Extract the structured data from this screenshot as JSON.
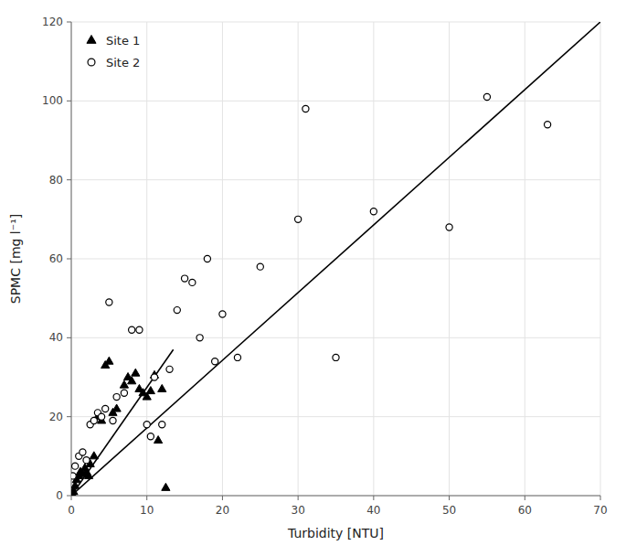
{
  "chart_data": {
    "type": "scatter",
    "xlabel": "Turbidity [NTU]",
    "ylabel": "SPMC [mg l⁻¹]",
    "xlim": [
      0,
      70
    ],
    "ylim": [
      0,
      120
    ],
    "xticks": [
      0,
      10,
      20,
      30,
      40,
      50,
      60,
      70
    ],
    "yticks": [
      0,
      20,
      40,
      60,
      80,
      100,
      120
    ],
    "grid": true,
    "legend": "upper left",
    "series": [
      {
        "name": "Site 1",
        "type": "scatter",
        "marker": "triangle",
        "color": "#000000",
        "x": [
          0.1,
          0.3,
          0.5,
          0.7,
          1.0,
          1.2,
          1.5,
          1.8,
          2.0,
          2.3,
          2.5,
          3.0,
          3.5,
          4.0,
          4.5,
          5.0,
          5.5,
          6.0,
          7.0,
          7.5,
          8.0,
          8.5,
          9.0,
          9.5,
          10.0,
          10.5,
          11.0,
          11.5,
          12.0,
          12.5
        ],
        "values": [
          0.5,
          1.0,
          2.5,
          4.0,
          5.0,
          6.0,
          5.5,
          7.0,
          6.0,
          5.0,
          8.0,
          10.0,
          20.0,
          19.0,
          33.0,
          34.0,
          21.0,
          22.0,
          28.0,
          30.0,
          29.0,
          31.0,
          27.0,
          26.0,
          25.0,
          26.5,
          30.5,
          14.0,
          27.0,
          2.0
        ]
      },
      {
        "name": "Site 2",
        "type": "scatter",
        "marker": "open-circle",
        "color": "#000000",
        "x": [
          0.2,
          0.5,
          1.0,
          1.5,
          2.0,
          2.5,
          3.0,
          3.5,
          4.0,
          4.5,
          5.0,
          5.5,
          6.0,
          7.0,
          8.0,
          9.0,
          10.0,
          10.5,
          11.0,
          12.0,
          13.0,
          14.0,
          15.0,
          16.0,
          17.0,
          18.0,
          19.0,
          20.0,
          22.0,
          25.0,
          30.0,
          31.0,
          35.0,
          40.0,
          50.0,
          55.0,
          63.0
        ],
        "values": [
          5.0,
          7.5,
          10.0,
          11.0,
          9.0,
          18.0,
          19.0,
          21.0,
          20.0,
          22.0,
          49.0,
          19.0,
          25.0,
          26.0,
          42.0,
          42.0,
          18.0,
          15.0,
          30.0,
          18.0,
          32.0,
          47.0,
          55.0,
          54.0,
          40.0,
          60.0,
          34.0,
          46.0,
          35.0,
          58.0,
          70.0,
          98.0,
          35.0,
          72.0,
          68.0,
          101.0,
          94.0
        ]
      },
      {
        "type": "line",
        "line_style": "solid",
        "color": "#000000",
        "x": [
          0,
          70
        ],
        "values": [
          0,
          120
        ]
      },
      {
        "type": "line",
        "line_style": "solid",
        "color": "#000000",
        "x": [
          0,
          13.5
        ],
        "values": [
          0,
          37
        ]
      }
    ]
  }
}
